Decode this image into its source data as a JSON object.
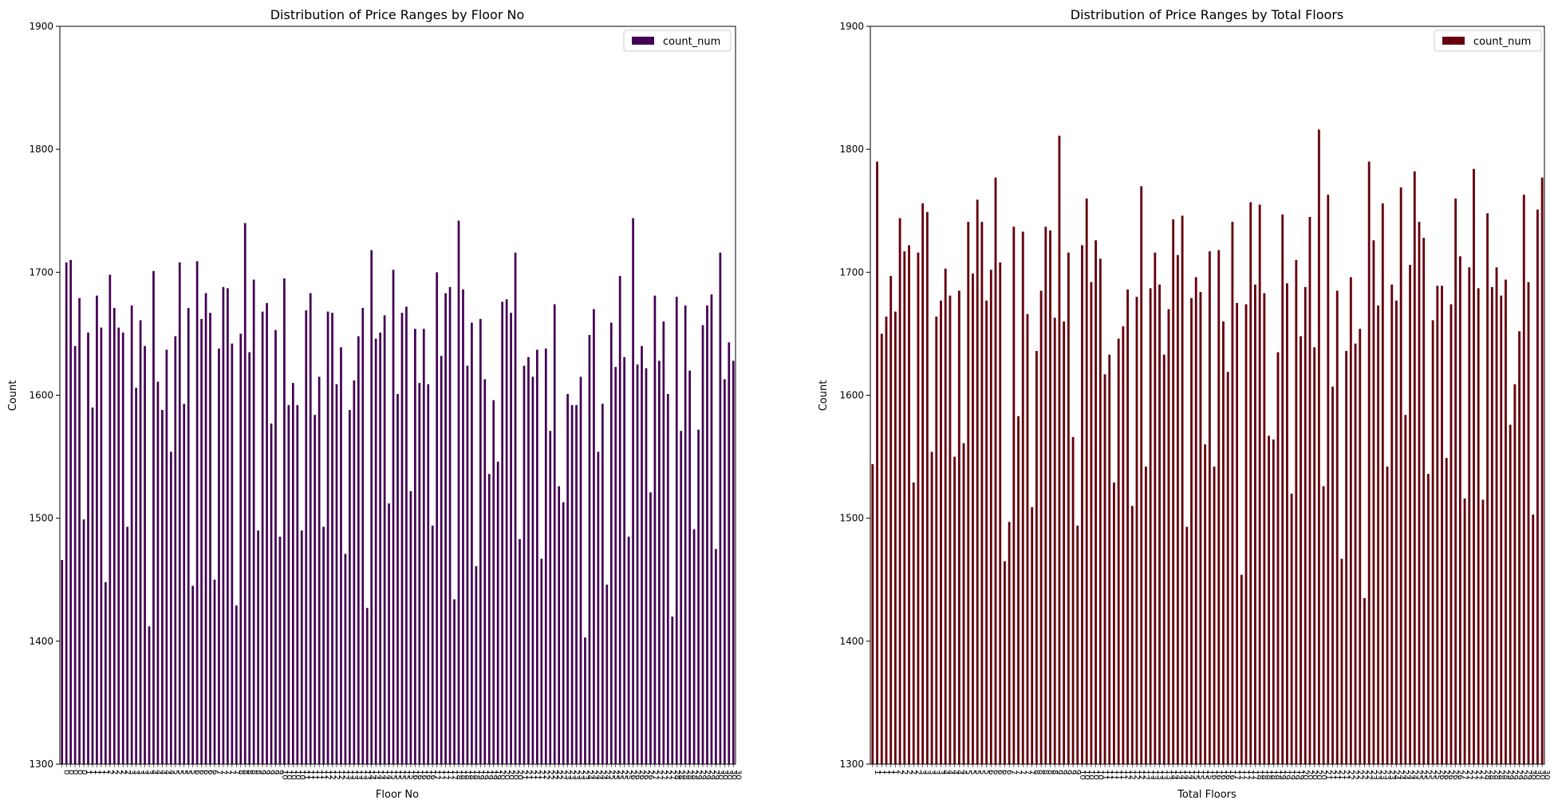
{
  "chart_data": [
    {
      "type": "bar",
      "title": "Distribution of Price Ranges by Floor No",
      "xlabel": "Floor No",
      "ylabel": "Count",
      "ylim": [
        1300,
        1900
      ],
      "yticks": [
        1300,
        1400,
        1500,
        1600,
        1700,
        1800,
        1900
      ],
      "legend": "top-right",
      "color": "#440154",
      "grid": false,
      "tick_label_cycle": [
        "0",
        "1",
        "2",
        "3",
        "4",
        "5",
        "6",
        "7",
        "8",
        "9",
        "10",
        "11",
        "12",
        "13",
        "14",
        "15",
        "16",
        "17",
        "18",
        "19",
        "20",
        "21",
        "22",
        "23",
        "24",
        "25",
        "26",
        "27",
        "28",
        "29",
        "30"
      ],
      "series": [
        {
          "name": "count_num",
          "values": [
            1466,
            1708,
            1710,
            1640,
            1679,
            1499,
            1651,
            1590,
            1681,
            1655,
            1448,
            1698,
            1671,
            1655,
            1651,
            1493,
            1673,
            1606,
            1661,
            1640,
            1412,
            1701,
            1611,
            1588,
            1637,
            1554,
            1648,
            1708,
            1593,
            1671,
            1445,
            1709,
            1662,
            1683,
            1667,
            1450,
            1638,
            1688,
            1687,
            1642,
            1429,
            1650,
            1740,
            1635,
            1694,
            1490,
            1668,
            1675,
            1577,
            1653,
            1485,
            1695,
            1592,
            1610,
            1592,
            1490,
            1669,
            1683,
            1584,
            1615,
            1493,
            1668,
            1667,
            1609,
            1639,
            1471,
            1588,
            1612,
            1648,
            1671,
            1427,
            1718,
            1646,
            1651,
            1665,
            1512,
            1702,
            1601,
            1667,
            1672,
            1522,
            1654,
            1610,
            1654,
            1609,
            1494,
            1700,
            1632,
            1683,
            1688,
            1434,
            1742,
            1686,
            1624,
            1659,
            1461,
            1662,
            1613,
            1536,
            1596,
            1546,
            1676,
            1678,
            1667,
            1716,
            1483,
            1624,
            1631,
            1615,
            1637,
            1467,
            1638,
            1571,
            1674,
            1526,
            1513,
            1601,
            1592,
            1592,
            1615,
            1403,
            1649,
            1670,
            1554,
            1593,
            1446,
            1659,
            1623,
            1697,
            1631,
            1485,
            1744,
            1625,
            1640,
            1622,
            1521,
            1681,
            1628,
            1660,
            1601,
            1420,
            1680,
            1571,
            1673,
            1620,
            1491,
            1572,
            1657,
            1673,
            1682,
            1475,
            1716,
            1613,
            1643,
            1628
          ]
        }
      ]
    },
    {
      "type": "bar",
      "title": "Distribution of Price Ranges by Total Floors",
      "xlabel": "Total Floors",
      "ylabel": "Count",
      "ylim": [
        1300,
        1900
      ],
      "yticks": [
        1300,
        1400,
        1500,
        1600,
        1700,
        1800,
        1900
      ],
      "legend": "top-right",
      "color": "#67000d",
      "grid": false,
      "tick_label_cycle": [
        "1",
        "2",
        "3",
        "4",
        "5",
        "6",
        "7",
        "8",
        "9",
        "10",
        "11",
        "12",
        "13",
        "14",
        "15",
        "16",
        "17",
        "18",
        "19",
        "20",
        "21",
        "22",
        "23",
        "24",
        "25",
        "26",
        "27",
        "28",
        "29",
        "30"
      ],
      "series": [
        {
          "name": "count_num",
          "values": [
            1544,
            1790,
            1650,
            1664,
            1697,
            1668,
            1744,
            1717,
            1722,
            1529,
            1716,
            1756,
            1749,
            1554,
            1664,
            1677,
            1703,
            1681,
            1550,
            1685,
            1561,
            1741,
            1699,
            1759,
            1741,
            1677,
            1702,
            1777,
            1708,
            1465,
            1497,
            1737,
            1583,
            1733,
            1666,
            1509,
            1636,
            1685,
            1737,
            1734,
            1663,
            1811,
            1660,
            1716,
            1566,
            1494,
            1722,
            1760,
            1692,
            1726,
            1711,
            1617,
            1633,
            1529,
            1646,
            1656,
            1686,
            1510,
            1680,
            1770,
            1542,
            1687,
            1716,
            1690,
            1633,
            1670,
            1743,
            1714,
            1746,
            1493,
            1679,
            1696,
            1684,
            1560,
            1717,
            1542,
            1718,
            1660,
            1619,
            1741,
            1675,
            1454,
            1674,
            1757,
            1690,
            1755,
            1683,
            1567,
            1564,
            1635,
            1747,
            1691,
            1520,
            1710,
            1648,
            1688,
            1745,
            1639,
            1816,
            1526,
            1763,
            1607,
            1685,
            1467,
            1636,
            1696,
            1642,
            1654,
            1435,
            1790,
            1726,
            1673,
            1756,
            1542,
            1690,
            1677,
            1769,
            1584,
            1706,
            1782,
            1741,
            1728,
            1536,
            1661,
            1689,
            1689,
            1549,
            1674,
            1760,
            1713,
            1516,
            1704,
            1784,
            1687,
            1515,
            1748,
            1688,
            1704,
            1681,
            1694,
            1576,
            1609,
            1652,
            1763,
            1692,
            1503,
            1751,
            1777
          ]
        }
      ]
    }
  ]
}
